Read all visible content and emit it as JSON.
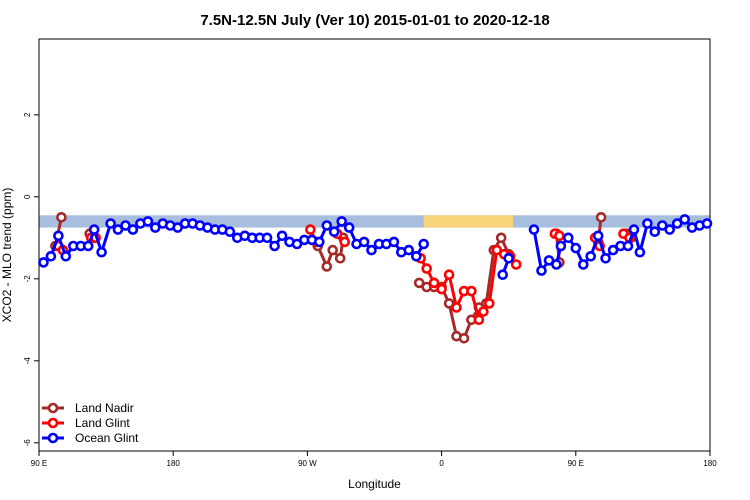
{
  "chart_data": {
    "type": "line",
    "title": "7.5N-12.5N July (Ver 10)   2015-01-01 to 2020-12-18",
    "xlabel": "Longitude",
    "ylabel": "XCO2 - MLO trend (ppm)",
    "xlim": [
      0,
      450
    ],
    "ylim": [
      -6.2,
      3.85
    ],
    "x_ticks": [
      {
        "value": 0,
        "label": "90 E"
      },
      {
        "value": 90,
        "label": "180"
      },
      {
        "value": 180,
        "label": "90 W"
      },
      {
        "value": 270,
        "label": "0"
      },
      {
        "value": 360,
        "label": "90 E"
      },
      {
        "value": 450,
        "label": "180"
      }
    ],
    "y_ticks": [
      {
        "value": -6,
        "label": "-6"
      },
      {
        "value": -4,
        "label": "-4"
      },
      {
        "value": -2,
        "label": "-2"
      },
      {
        "value": 0,
        "label": "0"
      },
      {
        "value": 2,
        "label": "2"
      }
    ],
    "grid": false,
    "legend_position": "bottom-left",
    "band": {
      "y_low": -0.75,
      "y_high": -0.45,
      "color": "#a7bedf",
      "land_color": "#f5d47a"
    },
    "series": [
      {
        "name": "Land Nadir",
        "color": "#a52a2a",
        "segments": [
          [
            [
              11,
              -1.2
            ],
            [
              15,
              -0.5
            ]
          ],
          [
            [
              34,
              -0.9
            ],
            [
              37,
              -1.0
            ]
          ],
          [
            [
              187,
              -1.2
            ],
            [
              193,
              -1.7
            ],
            [
              197,
              -1.3
            ],
            [
              202,
              -1.5
            ],
            [
              204,
              -1.0
            ]
          ],
          [
            [
              255,
              -2.1
            ],
            [
              260,
              -2.2
            ],
            [
              265,
              -2.2
            ],
            [
              270,
              -2.2
            ],
            [
              275,
              -2.6
            ],
            [
              280,
              -3.4
            ],
            [
              285,
              -3.45
            ],
            [
              290,
              -3.0
            ],
            [
              295,
              -2.7
            ],
            [
              300,
              -2.6
            ],
            [
              305,
              -1.3
            ],
            [
              310,
              -1.0
            ],
            [
              315,
              -1.4
            ]
          ],
          [
            [
              347,
              -0.9
            ],
            [
              349,
              -1.6
            ]
          ],
          [
            [
              375,
              -1.1
            ],
            [
              377,
              -0.5
            ]
          ],
          [
            [
              394,
              -0.9
            ],
            [
              397,
              -1.0
            ]
          ]
        ]
      },
      {
        "name": "Land Glint",
        "color": "#ff0000",
        "segments": [
          [
            [
              13,
              -1.2
            ],
            [
              16,
              -1.3
            ]
          ],
          [
            [
              35,
              -1.0
            ],
            [
              38,
              -1.0
            ]
          ],
          [
            [
              182,
              -0.8
            ],
            [
              186,
              -1.1
            ]
          ],
          [
            [
              200,
              -0.9
            ],
            [
              205,
              -1.1
            ]
          ],
          [
            [
              256,
              -1.5
            ],
            [
              260,
              -1.75
            ],
            [
              265,
              -2.1
            ],
            [
              270,
              -2.25
            ],
            [
              275,
              -1.9
            ],
            [
              280,
              -2.7
            ],
            [
              285,
              -2.3
            ],
            [
              290,
              -2.3
            ],
            [
              295,
              -3.0
            ],
            [
              298,
              -2.8
            ],
            [
              302,
              -2.6
            ],
            [
              307,
              -1.3
            ],
            [
              312,
              -1.4
            ],
            [
              316,
              -1.45
            ],
            [
              320,
              -1.65
            ]
          ],
          [
            [
              346,
              -0.9
            ],
            [
              349,
              -0.95
            ]
          ],
          [
            [
              373,
              -1.0
            ],
            [
              376,
              -1.2
            ]
          ],
          [
            [
              392,
              -0.9
            ],
            [
              396,
              -1.0
            ]
          ]
        ]
      },
      {
        "name": "Ocean Glint",
        "color": "#0000ff",
        "segments": [
          [
            [
              3,
              -1.6
            ],
            [
              8,
              -1.45
            ],
            [
              13,
              -0.95
            ],
            [
              18,
              -1.45
            ],
            [
              23,
              -1.2
            ],
            [
              28,
              -1.2
            ],
            [
              33,
              -1.2
            ],
            [
              37,
              -0.8
            ],
            [
              42,
              -1.35
            ],
            [
              48,
              -0.65
            ],
            [
              53,
              -0.8
            ],
            [
              58,
              -0.7
            ],
            [
              63,
              -0.8
            ],
            [
              68,
              -0.65
            ],
            [
              73,
              -0.6
            ],
            [
              78,
              -0.75
            ],
            [
              83,
              -0.65
            ],
            [
              88,
              -0.7
            ],
            [
              93,
              -0.75
            ],
            [
              98,
              -0.65
            ],
            [
              103,
              -0.65
            ],
            [
              108,
              -0.7
            ],
            [
              113,
              -0.75
            ],
            [
              118,
              -0.8
            ],
            [
              123,
              -0.8
            ],
            [
              128,
              -0.85
            ],
            [
              133,
              -1.0
            ],
            [
              138,
              -0.95
            ],
            [
              143,
              -1.0
            ],
            [
              148,
              -1.0
            ],
            [
              153,
              -1.0
            ],
            [
              158,
              -1.2
            ],
            [
              163,
              -0.95
            ],
            [
              168,
              -1.1
            ],
            [
              173,
              -1.15
            ],
            [
              178,
              -1.05
            ],
            [
              183,
              -1.05
            ],
            [
              188,
              -1.1
            ],
            [
              193,
              -0.7
            ],
            [
              198,
              -0.85
            ],
            [
              203,
              -0.6
            ],
            [
              208,
              -0.75
            ],
            [
              213,
              -1.15
            ],
            [
              218,
              -1.1
            ],
            [
              223,
              -1.3
            ],
            [
              228,
              -1.15
            ],
            [
              233,
              -1.15
            ],
            [
              238,
              -1.1
            ],
            [
              243,
              -1.35
            ],
            [
              248,
              -1.3
            ],
            [
              253,
              -1.45
            ],
            [
              258,
              -1.15
            ]
          ],
          [
            [
              311,
              -1.9
            ],
            [
              315,
              -1.5
            ]
          ],
          [
            [
              332,
              -0.8
            ],
            [
              337,
              -1.8
            ],
            [
              342,
              -1.55
            ],
            [
              347,
              -1.65
            ],
            [
              350,
              -1.2
            ],
            [
              355,
              -1.0
            ],
            [
              360,
              -1.25
            ],
            [
              365,
              -1.65
            ],
            [
              370,
              -1.45
            ],
            [
              375,
              -0.95
            ],
            [
              380,
              -1.5
            ],
            [
              385,
              -1.3
            ],
            [
              390,
              -1.2
            ],
            [
              395,
              -1.2
            ],
            [
              399,
              -0.8
            ],
            [
              403,
              -1.35
            ],
            [
              408,
              -0.65
            ],
            [
              413,
              -0.85
            ],
            [
              418,
              -0.7
            ],
            [
              423,
              -0.8
            ],
            [
              428,
              -0.65
            ],
            [
              433,
              -0.55
            ],
            [
              438,
              -0.75
            ],
            [
              443,
              -0.7
            ],
            [
              448,
              -0.65
            ]
          ]
        ]
      }
    ]
  }
}
